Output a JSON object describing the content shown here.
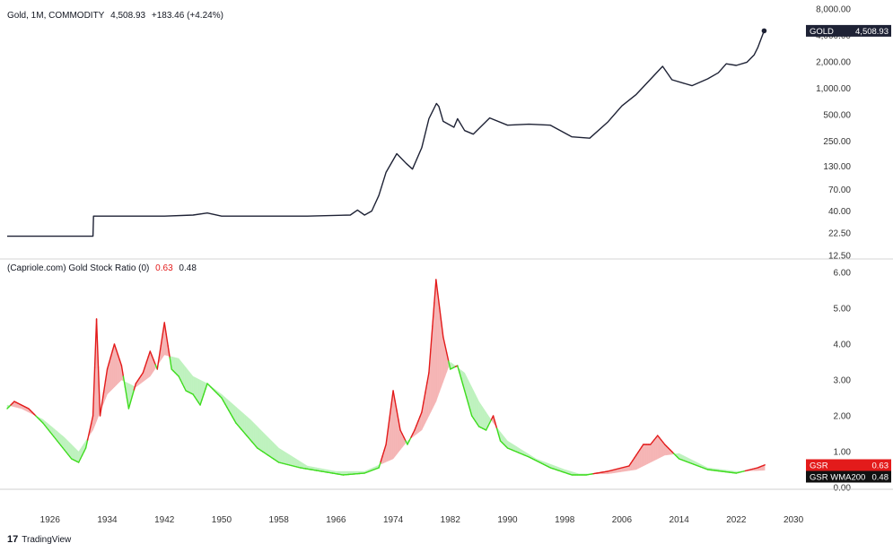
{
  "top_header": {
    "symbol": "Gold, 1M, COMMODITY",
    "price": "4,508.93",
    "change": "+183.46 (+4.24%)"
  },
  "bottom_header": {
    "indicator": "(Capriole.com) Gold Stock Ratio (0)",
    "gsr_value": "0.63",
    "wma_value": "0.48"
  },
  "badges": {
    "gold_name": "GOLD",
    "gold_value": "4,508.93",
    "gsr_name": "GSR",
    "gsr_value": "0.63",
    "wma_name": "GSR WMA200",
    "wma_value": "0.48"
  },
  "branding": "TradingView",
  "colors": {
    "gold_line": "#1e2235",
    "gsr_above": "#e31b1b",
    "gsr_below": "#3fdc1f",
    "fill_above": "#f5b5b5",
    "fill_below": "#bff2bf",
    "grid": "#e6e6e6",
    "badge_dark": "#1e2235",
    "badge_red": "#e31b1b",
    "badge_black": "#111111"
  },
  "chart_data": [
    {
      "type": "line",
      "scale": "log",
      "y_ticks": [
        "8,000.00",
        "4,000.00",
        "2,000.00",
        "1,000.00",
        "500.00",
        "250.00",
        "130.00",
        "70.00",
        "40.00",
        "22.50",
        "12.50"
      ],
      "y_tick_values": [
        8000,
        4000,
        2000,
        1000,
        500,
        250,
        130,
        70,
        40,
        22.5,
        12.5
      ],
      "ylim": [
        12.5,
        8000
      ],
      "series": [
        {
          "x": [
            1920,
            1932.0,
            1932.08,
            1934,
            1938,
            1942,
            1946,
            1948,
            1950,
            1954,
            1962,
            1968,
            1969,
            1970,
            1971,
            1972,
            1973,
            1974.5,
            1975.8,
            1976.7,
            1978,
            1979,
            1980.05,
            1980.4,
            1981,
            1982.5,
            1983,
            1984,
            1985.2,
            1987.5,
            1990,
            1993,
            1996,
            1999,
            2001.5,
            2004,
            2006,
            2008,
            2011.7,
            2013,
            2015.8,
            2018,
            2019.5,
            2020.6,
            2022,
            2023.5,
            2024.5,
            2025,
            2025.9
          ],
          "values": [
            20.67,
            20.67,
            35,
            35,
            35,
            35,
            36,
            38,
            35,
            35,
            35,
            36,
            41,
            36,
            40,
            60,
            110,
            180,
            140,
            120,
            210,
            450,
            670,
            620,
            420,
            360,
            450,
            330,
            300,
            460,
            380,
            390,
            380,
            280,
            270,
            410,
            630,
            850,
            1780,
            1250,
            1070,
            1280,
            1500,
            1900,
            1820,
            1980,
            2400,
            2900,
            4508.93
          ]
        }
      ]
    },
    {
      "type": "line",
      "title": "(Capriole.com) Gold Stock Ratio (0)",
      "y_ticks": [
        "6.00",
        "5.00",
        "4.00",
        "3.00",
        "2.00",
        "1.00",
        "0.00"
      ],
      "y_tick_values": [
        6,
        5,
        4,
        3,
        2,
        1,
        0
      ],
      "ylim": [
        0,
        6
      ],
      "x_ticks": [
        "1926",
        "1934",
        "1942",
        "1950",
        "1958",
        "1966",
        "1974",
        "1982",
        "1990",
        "1998",
        "2006",
        "2014",
        "2022",
        "2030"
      ],
      "x_tick_values": [
        1926,
        1934,
        1942,
        1950,
        1958,
        1966,
        1974,
        1982,
        1990,
        1998,
        2006,
        2014,
        2022,
        2030
      ],
      "xlim": [
        1920,
        2032
      ],
      "series": [
        {
          "name": "GSR",
          "x": [
            1920,
            1921,
            1923,
            1925,
            1927,
            1929,
            1930,
            1931,
            1932,
            1932.5,
            1933,
            1934,
            1935,
            1936,
            1937,
            1938,
            1939,
            1940,
            1941,
            1942,
            1943,
            1944,
            1945,
            1946,
            1947,
            1948,
            1949,
            1950,
            1952,
            1955,
            1958,
            1961,
            1964,
            1967,
            1970,
            1972,
            1973,
            1974,
            1975,
            1976,
            1977,
            1978,
            1979,
            1980,
            1981,
            1982,
            1983,
            1984,
            1985,
            1986,
            1987,
            1988,
            1989,
            1990,
            1993,
            1996,
            1999,
            2001,
            2004,
            2007,
            2009,
            2010,
            2011,
            2012,
            2013,
            2014,
            2016,
            2018,
            2020,
            2022,
            2024,
            2025,
            2026
          ],
          "values": [
            2.2,
            2.4,
            2.2,
            1.8,
            1.3,
            0.8,
            0.7,
            1.1,
            2.0,
            4.7,
            2.0,
            3.3,
            4.0,
            3.4,
            2.2,
            2.9,
            3.2,
            3.8,
            3.3,
            4.6,
            3.3,
            3.1,
            2.7,
            2.6,
            2.3,
            2.9,
            2.7,
            2.5,
            1.8,
            1.1,
            0.7,
            0.55,
            0.45,
            0.35,
            0.4,
            0.55,
            1.2,
            2.7,
            1.6,
            1.2,
            1.6,
            2.1,
            3.2,
            5.8,
            4.2,
            3.3,
            3.4,
            2.7,
            2.0,
            1.7,
            1.6,
            2.0,
            1.3,
            1.1,
            0.85,
            0.55,
            0.35,
            0.35,
            0.45,
            0.6,
            1.2,
            1.2,
            1.45,
            1.2,
            1.0,
            0.8,
            0.65,
            0.5,
            0.45,
            0.4,
            0.5,
            0.55,
            0.63
          ]
        },
        {
          "name": "GSR WMA200",
          "x": [
            1920,
            1922,
            1925,
            1928,
            1930,
            1932,
            1934,
            1936,
            1938,
            1940,
            1942,
            1944,
            1946,
            1948,
            1950,
            1954,
            1958,
            1962,
            1966,
            1970,
            1974,
            1976,
            1978,
            1980,
            1982,
            1984,
            1986,
            1988,
            1990,
            1994,
            1998,
            2000,
            2004,
            2008,
            2012,
            2014,
            2016,
            2018,
            2022,
            2026
          ],
          "values": [
            2.3,
            2.2,
            1.9,
            1.4,
            1.0,
            1.6,
            2.6,
            3.0,
            2.8,
            3.1,
            3.7,
            3.6,
            3.1,
            2.9,
            2.6,
            1.9,
            1.1,
            0.6,
            0.45,
            0.45,
            0.8,
            1.3,
            1.6,
            2.4,
            3.5,
            3.2,
            2.4,
            1.8,
            1.3,
            0.8,
            0.5,
            0.38,
            0.38,
            0.5,
            0.9,
            0.95,
            0.75,
            0.55,
            0.45,
            0.48
          ]
        }
      ]
    }
  ]
}
